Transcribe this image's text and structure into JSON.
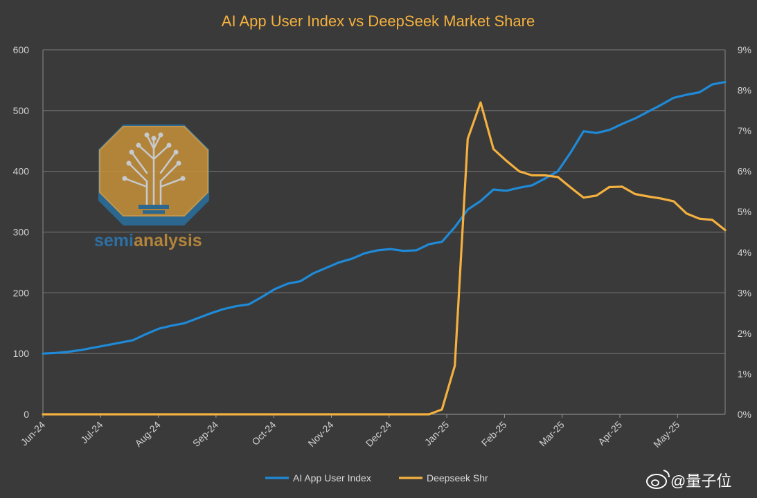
{
  "chart_data": {
    "type": "line",
    "title": "AI App User Index vs DeepSeek Market Share",
    "x_labels": [
      "Jun-24",
      "Jul-24",
      "Aug-24",
      "Sep-24",
      "Oct-24",
      "Nov-24",
      "Dec-24",
      "Jan-25",
      "Feb-25",
      "Mar-25",
      "Apr-25",
      "May-25"
    ],
    "y_left": {
      "ticks": [
        "0",
        "100",
        "200",
        "300",
        "400",
        "500",
        "600"
      ],
      "min": 0,
      "max": 600
    },
    "y_right": {
      "ticks": [
        "0%",
        "1%",
        "2%",
        "3%",
        "4%",
        "5%",
        "6%",
        "7%",
        "8%",
        "9%"
      ],
      "min": 0,
      "max": 9
    },
    "grid": true,
    "legend_position": "bottom",
    "series": [
      {
        "name": "AI App User Index",
        "axis": "left",
        "color": "#1f8ad8",
        "values": [
          100,
          101,
          103,
          106,
          110,
          114,
          118,
          122,
          132,
          141,
          146,
          150,
          158,
          166,
          173,
          178,
          181,
          193,
          206,
          215,
          219,
          232,
          241,
          250,
          256,
          265,
          270,
          272,
          269,
          270,
          280,
          284,
          308,
          337,
          351,
          370,
          368,
          373,
          377,
          388,
          400,
          431,
          466,
          463,
          468,
          478,
          487,
          498,
          509,
          521,
          526,
          530,
          543,
          547
        ]
      },
      {
        "name": "Deepseek Shr",
        "axis": "right",
        "color": "#f4b13f",
        "values": [
          0,
          0,
          0,
          0,
          0,
          0,
          0,
          0,
          0,
          0,
          0,
          0,
          0,
          0,
          0,
          0,
          0,
          0,
          0,
          0,
          0,
          0,
          0,
          0,
          0,
          0,
          0,
          0,
          0,
          0,
          0,
          0.12,
          1.2,
          6.8,
          7.7,
          6.55,
          6.26,
          6.0,
          5.9,
          5.9,
          5.86,
          5.6,
          5.35,
          5.4,
          5.61,
          5.62,
          5.44,
          5.38,
          5.33,
          5.26,
          4.96,
          4.83,
          4.8,
          4.55
        ]
      }
    ]
  },
  "watermark": {
    "text_part1": "semi",
    "text_part2": "analysis",
    "icon": "circuit-tree-logo-icon"
  },
  "corner_mark": {
    "text": "@量子位",
    "icon": "weibo-logo-icon"
  },
  "colors": {
    "background": "#3a3a3a",
    "title": "#f4b13f",
    "grid": "#7a7a7a"
  }
}
